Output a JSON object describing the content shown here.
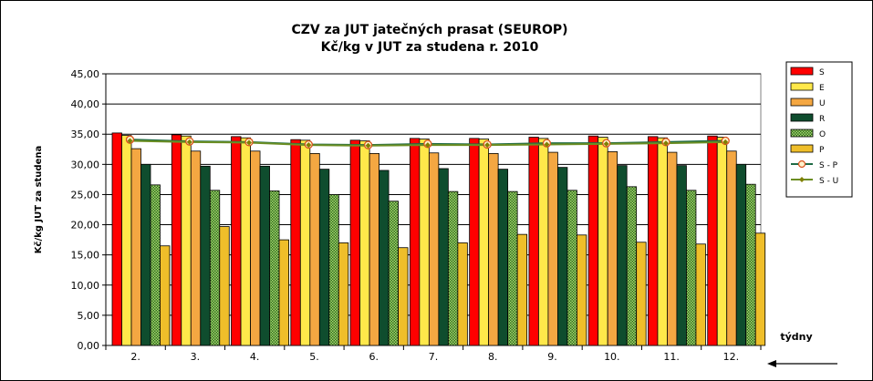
{
  "chart_data": {
    "type": "bar",
    "title": "CZV za JUT jatečných prasat (SEUROP)",
    "subtitle": "Kč/kg v JUT za studena r. 2010",
    "ylabel": "Kč/kg  JUT za studena",
    "xlabel": "týdny",
    "ylim": [
      0,
      45
    ],
    "ytick_step": 5,
    "ytick_labels": [
      "0,00",
      "5,00",
      "10,00",
      "15,00",
      "20,00",
      "25,00",
      "30,00",
      "35,00",
      "40,00",
      "45,00"
    ],
    "grid": true,
    "legend_position": "right",
    "categories": [
      "2.",
      "3.",
      "4.",
      "5.",
      "6.",
      "7.",
      "8.",
      "9.",
      "10.",
      "11.",
      "12."
    ],
    "series": [
      {
        "name": "S",
        "kind": "bar",
        "color": "#ff0000",
        "values": [
          35.2,
          34.9,
          34.6,
          34.1,
          34.0,
          34.3,
          34.3,
          34.5,
          34.7,
          34.6,
          34.7
        ]
      },
      {
        "name": "E",
        "kind": "bar",
        "color": "#ffe84a",
        "values": [
          34.8,
          34.7,
          34.4,
          34.0,
          33.9,
          34.2,
          34.2,
          34.3,
          34.5,
          34.4,
          34.5
        ]
      },
      {
        "name": "U",
        "kind": "bar",
        "color": "#f4a742",
        "values": [
          32.6,
          32.2,
          32.2,
          31.8,
          31.8,
          31.9,
          31.8,
          32.0,
          32.1,
          32.0,
          32.2
        ]
      },
      {
        "name": "R",
        "kind": "bar",
        "color": "#0f4d2e",
        "values": [
          30.0,
          29.7,
          29.7,
          29.2,
          29.0,
          29.3,
          29.2,
          29.5,
          29.8,
          29.8,
          30.0
        ]
      },
      {
        "name": "O",
        "kind": "bar",
        "color": "#77b255",
        "pattern": true,
        "values": [
          26.6,
          25.7,
          25.6,
          25.0,
          23.9,
          25.5,
          25.5,
          25.7,
          26.3,
          25.7,
          26.7
        ]
      },
      {
        "name": "P",
        "kind": "bar",
        "color": "#efbe2a",
        "values": [
          16.5,
          19.7,
          17.5,
          17.0,
          16.2,
          17.0,
          18.4,
          18.3,
          17.1,
          16.8,
          18.6
        ]
      },
      {
        "name": "S - P",
        "kind": "line",
        "color": "#1f6b45",
        "marker": "circle",
        "marker_fill": "#fff2cc",
        "marker_edge": "#d9541e",
        "values": [
          34.1,
          33.8,
          33.7,
          33.3,
          33.2,
          33.4,
          33.3,
          33.5,
          33.5,
          33.7,
          33.9
        ]
      },
      {
        "name": "S - U",
        "kind": "line",
        "color": "#6b8e23",
        "marker": "diamond",
        "marker_fill": "#808000",
        "values": [
          33.9,
          33.7,
          33.6,
          33.2,
          33.1,
          33.2,
          33.2,
          33.3,
          33.4,
          33.5,
          33.7
        ]
      }
    ]
  }
}
